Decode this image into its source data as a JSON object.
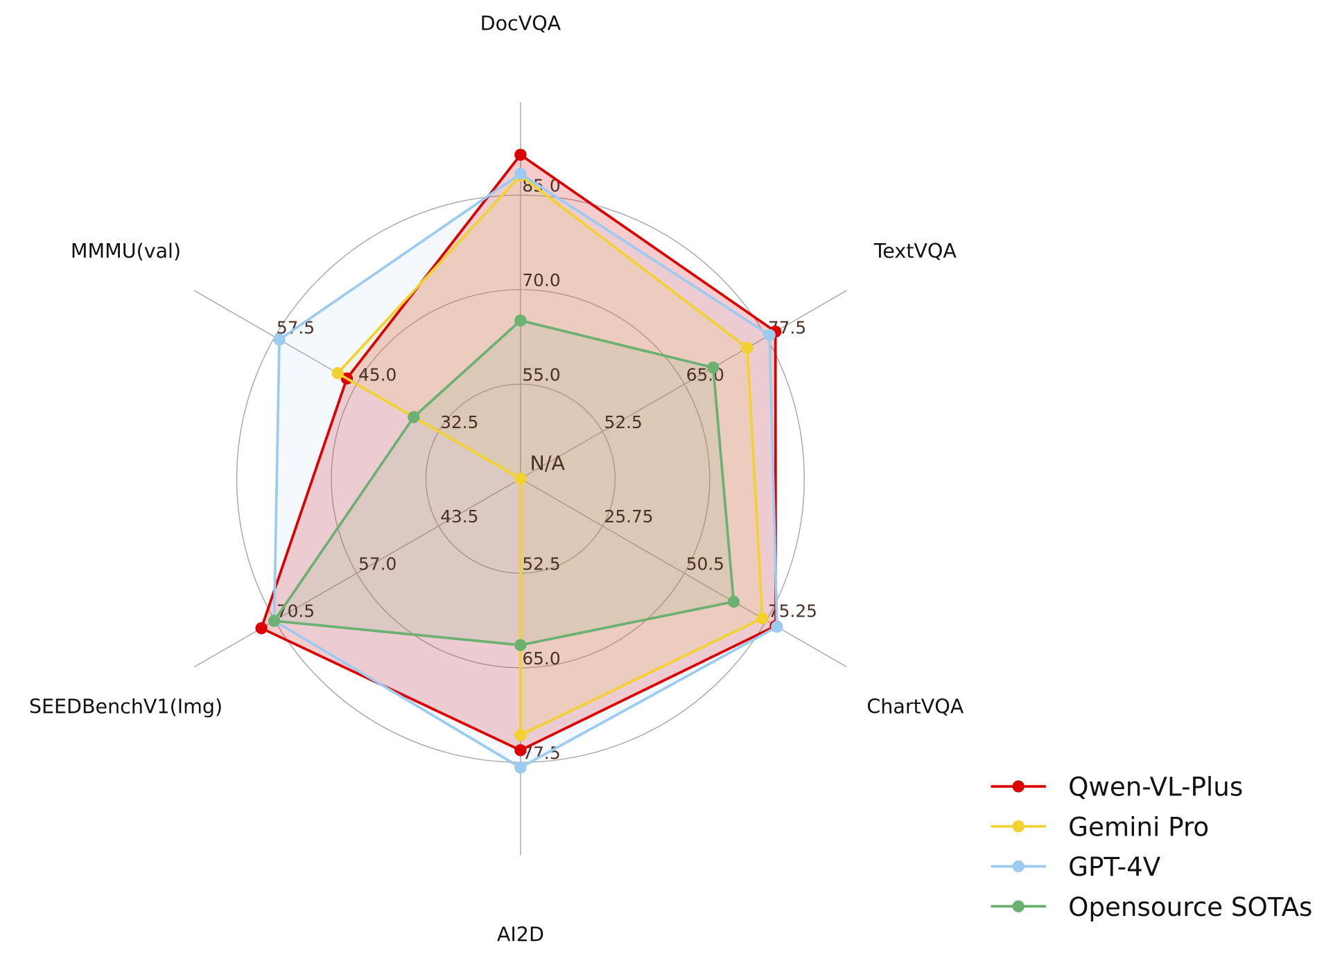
{
  "chart_data": {
    "type": "radar",
    "title": "",
    "axes": [
      {
        "label": "DocVQA",
        "ticks": [
          "55.0",
          "70.0",
          "85.0"
        ],
        "origin": 40,
        "step": 15
      },
      {
        "label": "TextVQA",
        "ticks": [
          "52.5",
          "65.0",
          "77.5"
        ],
        "origin": 40,
        "step": 12.5
      },
      {
        "label": "ChartVQA",
        "ticks": [
          "25.75",
          "50.5",
          "75.25"
        ],
        "origin": 1,
        "step": 24.75
      },
      {
        "label": "AI2D",
        "ticks": [
          "52.5",
          "65.0",
          "77.5"
        ],
        "origin": 40,
        "step": 12.5
      },
      {
        "label": "SEEDBenchV1(Img)",
        "ticks": [
          "43.5",
          "57.0",
          "70.5"
        ],
        "origin": 30,
        "step": 13.5
      },
      {
        "label": "MMMU(val)",
        "ticks": [
          "32.5",
          "45.0",
          "57.5"
        ],
        "origin": 20,
        "step": 12.5
      }
    ],
    "center_label": "N/A",
    "series": [
      {
        "name": "Qwen-VL-Plus",
        "color": "#dd0000",
        "fill_opacity": 0.2,
        "values": [
          91.4,
          78.9,
          78.1,
          75.9,
          72.7,
          46.5
        ]
      },
      {
        "name": "Gemini Pro",
        "color": "#f2d130",
        "fill_opacity": 0.12,
        "values": [
          88.1,
          74.6,
          74.1,
          73.9,
          null,
          47.9
        ]
      },
      {
        "name": "GPT-4V",
        "color": "#9ccbf2",
        "fill_opacity": 0.12,
        "values": [
          88.4,
          78.0,
          78.5,
          78.2,
          70.6,
          56.8
        ]
      },
      {
        "name": "Opensource SOTAs",
        "color": "#6db172",
        "fill_opacity": 0.12,
        "values": [
          65.1,
          69.4,
          65.4,
          62.0,
          70.6,
          36.3
        ]
      }
    ],
    "legend_position": "bottom-right",
    "grid": true
  }
}
